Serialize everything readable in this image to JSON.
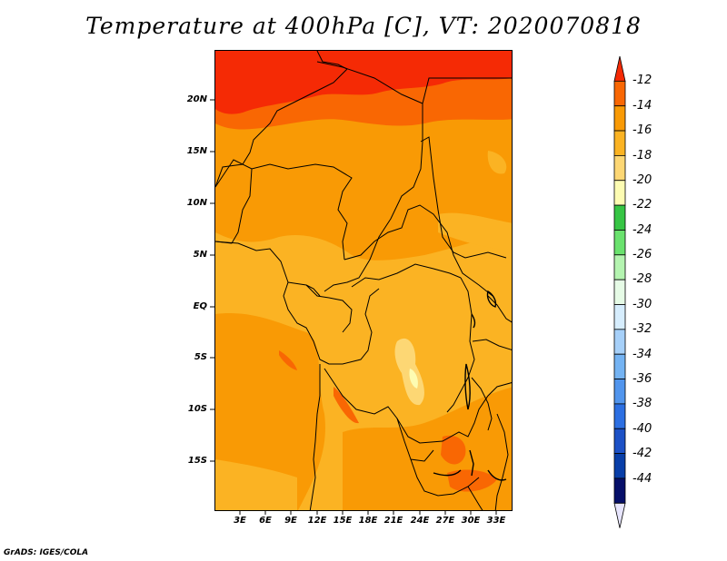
{
  "title": "Temperature at 400hPa [C], VT: 2020070818",
  "credit": "GrADS: IGES/COLA",
  "lat_labels": [
    "20N",
    "15N",
    "10N",
    "5N",
    "EQ",
    "5S",
    "10S",
    "15S"
  ],
  "lon_labels": [
    "3E",
    "6E",
    "9E",
    "12E",
    "15E",
    "18E",
    "21E",
    "24E",
    "27E",
    "30E",
    "33E"
  ],
  "colorbar": {
    "labels": [
      "-12",
      "-14",
      "-16",
      "-18",
      "-20",
      "-22",
      "-24",
      "-26",
      "-28",
      "-30",
      "-32",
      "-34",
      "-36",
      "-38",
      "-40",
      "-42",
      "-44"
    ],
    "colors": [
      "#f52a05",
      "#f96703",
      "#f99a05",
      "#fbb323",
      "#fdd774",
      "#fdfcb2",
      "#36c544",
      "#6ae26e",
      "#b4f4b0",
      "#e6fbe6",
      "#d6edfd",
      "#a6d0f9",
      "#74b3f3",
      "#5195ed",
      "#2c6fe2",
      "#1c51c6",
      "#083ea8",
      "#060f69",
      "#e7e5fd"
    ]
  }
}
